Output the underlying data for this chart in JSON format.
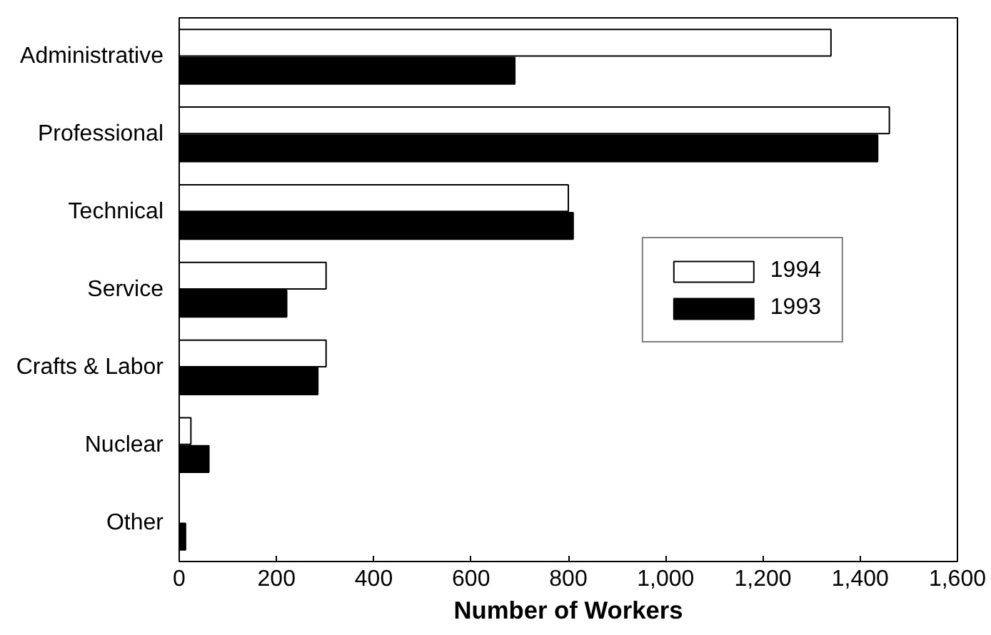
{
  "chart_data": {
    "type": "bar",
    "orientation": "horizontal",
    "xlabel": "Number of Workers",
    "categories": [
      "Administrative",
      "Professional",
      "Technical",
      "Service",
      "Crafts & Labor",
      "Nuclear",
      "Other"
    ],
    "series": [
      {
        "name": "1994",
        "color": "#ffffff",
        "values": [
          1340,
          1460,
          800,
          302,
          302,
          24,
          null
        ]
      },
      {
        "name": "1993",
        "color": "#000000",
        "values": [
          690,
          1436,
          810,
          221,
          285,
          61,
          13
        ]
      }
    ],
    "xlim": [
      0,
      1600
    ],
    "xticks": [
      0,
      200,
      400,
      600,
      800,
      {
        "value": 1000,
        "label": "1,000"
      },
      {
        "value": 1200,
        "label": "1,200"
      },
      {
        "value": 1400,
        "label": "1,400"
      },
      {
        "value": 1600,
        "label": "1,600"
      }
    ],
    "grid": false,
    "legend": "right"
  }
}
